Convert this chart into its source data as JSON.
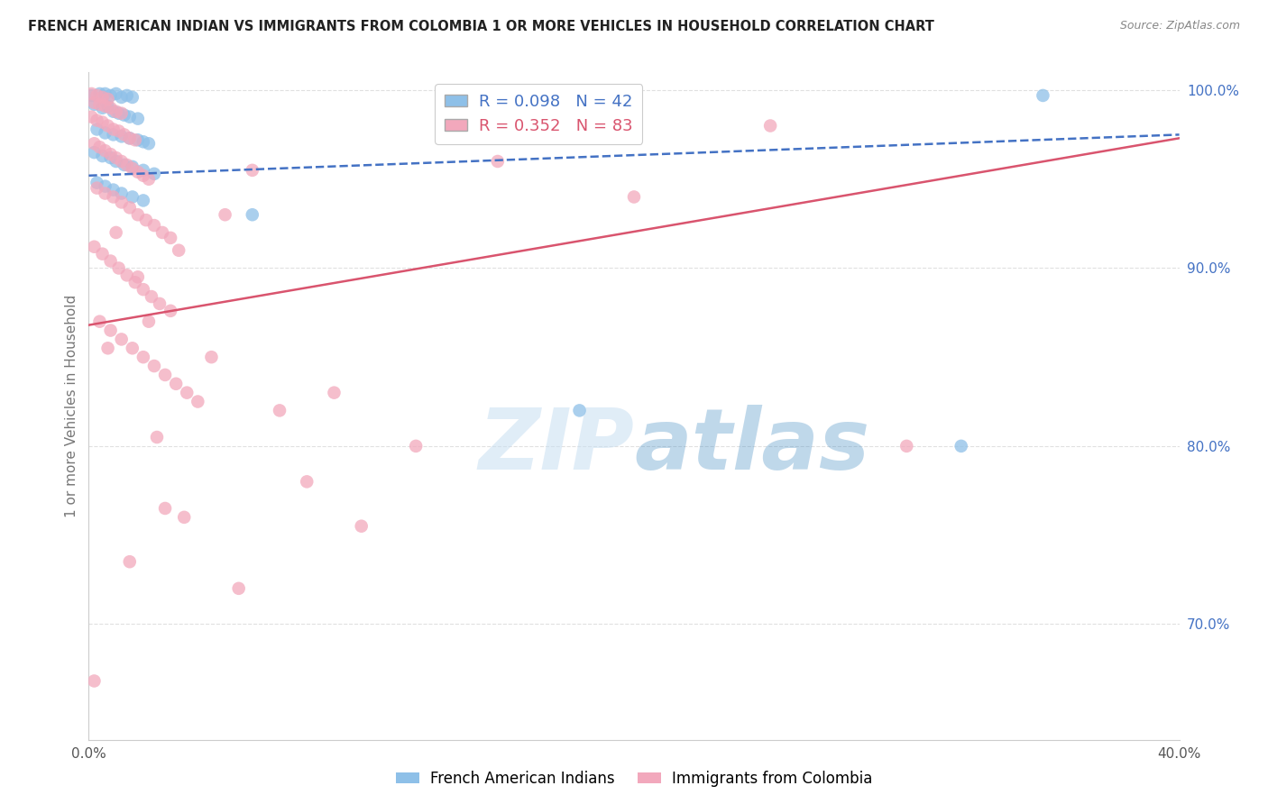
{
  "title": "FRENCH AMERICAN INDIAN VS IMMIGRANTS FROM COLOMBIA 1 OR MORE VEHICLES IN HOUSEHOLD CORRELATION CHART",
  "source": "Source: ZipAtlas.com",
  "ylabel": "1 or more Vehicles in Household",
  "xlim": [
    0.0,
    0.4
  ],
  "ylim": [
    0.635,
    1.01
  ],
  "xticks": [
    0.0,
    0.05,
    0.1,
    0.15,
    0.2,
    0.25,
    0.3,
    0.35,
    0.4
  ],
  "xtick_labels": [
    "0.0%",
    "",
    "",
    "",
    "",
    "",
    "",
    "",
    "40.0%"
  ],
  "ytick_labels_right": [
    "100.0%",
    "90.0%",
    "80.0%",
    "70.0%"
  ],
  "yticks_right": [
    1.0,
    0.9,
    0.8,
    0.7
  ],
  "legend_R_blue": "0.098",
  "legend_N_blue": "42",
  "legend_R_pink": "0.352",
  "legend_N_pink": "83",
  "legend_label_blue": "French American Indians",
  "legend_label_pink": "Immigrants from Colombia",
  "blue_color": "#8ec0e8",
  "pink_color": "#f2a8bc",
  "trendline_blue_color": "#4472c4",
  "trendline_pink_color": "#d9546e",
  "blue_scatter": [
    [
      0.001,
      0.997
    ],
    [
      0.004,
      0.998
    ],
    [
      0.006,
      0.998
    ],
    [
      0.008,
      0.997
    ],
    [
      0.01,
      0.998
    ],
    [
      0.012,
      0.996
    ],
    [
      0.014,
      0.997
    ],
    [
      0.016,
      0.996
    ],
    [
      0.002,
      0.992
    ],
    [
      0.005,
      0.99
    ],
    [
      0.007,
      0.991
    ],
    [
      0.009,
      0.988
    ],
    [
      0.011,
      0.987
    ],
    [
      0.013,
      0.986
    ],
    [
      0.015,
      0.985
    ],
    [
      0.018,
      0.984
    ],
    [
      0.003,
      0.978
    ],
    [
      0.006,
      0.976
    ],
    [
      0.009,
      0.975
    ],
    [
      0.012,
      0.974
    ],
    [
      0.015,
      0.973
    ],
    [
      0.018,
      0.972
    ],
    [
      0.02,
      0.971
    ],
    [
      0.022,
      0.97
    ],
    [
      0.002,
      0.965
    ],
    [
      0.005,
      0.963
    ],
    [
      0.008,
      0.962
    ],
    [
      0.01,
      0.96
    ],
    [
      0.013,
      0.958
    ],
    [
      0.016,
      0.957
    ],
    [
      0.02,
      0.955
    ],
    [
      0.024,
      0.953
    ],
    [
      0.003,
      0.948
    ],
    [
      0.006,
      0.946
    ],
    [
      0.009,
      0.944
    ],
    [
      0.012,
      0.942
    ],
    [
      0.016,
      0.94
    ],
    [
      0.02,
      0.938
    ],
    [
      0.06,
      0.93
    ],
    [
      0.18,
      0.82
    ],
    [
      0.32,
      0.8
    ],
    [
      0.35,
      0.997
    ]
  ],
  "pink_scatter": [
    [
      0.001,
      0.998
    ],
    [
      0.003,
      0.997
    ],
    [
      0.005,
      0.996
    ],
    [
      0.007,
      0.995
    ],
    [
      0.002,
      0.993
    ],
    [
      0.004,
      0.992
    ],
    [
      0.006,
      0.991
    ],
    [
      0.008,
      0.99
    ],
    [
      0.01,
      0.988
    ],
    [
      0.012,
      0.987
    ],
    [
      0.001,
      0.985
    ],
    [
      0.003,
      0.983
    ],
    [
      0.005,
      0.982
    ],
    [
      0.007,
      0.98
    ],
    [
      0.009,
      0.978
    ],
    [
      0.011,
      0.977
    ],
    [
      0.013,
      0.975
    ],
    [
      0.015,
      0.973
    ],
    [
      0.017,
      0.972
    ],
    [
      0.002,
      0.97
    ],
    [
      0.004,
      0.968
    ],
    [
      0.006,
      0.966
    ],
    [
      0.008,
      0.964
    ],
    [
      0.01,
      0.962
    ],
    [
      0.012,
      0.96
    ],
    [
      0.014,
      0.958
    ],
    [
      0.016,
      0.956
    ],
    [
      0.018,
      0.954
    ],
    [
      0.02,
      0.952
    ],
    [
      0.022,
      0.95
    ],
    [
      0.003,
      0.945
    ],
    [
      0.006,
      0.942
    ],
    [
      0.009,
      0.94
    ],
    [
      0.012,
      0.937
    ],
    [
      0.015,
      0.934
    ],
    [
      0.018,
      0.93
    ],
    [
      0.021,
      0.927
    ],
    [
      0.024,
      0.924
    ],
    [
      0.027,
      0.92
    ],
    [
      0.03,
      0.917
    ],
    [
      0.002,
      0.912
    ],
    [
      0.005,
      0.908
    ],
    [
      0.008,
      0.904
    ],
    [
      0.011,
      0.9
    ],
    [
      0.014,
      0.896
    ],
    [
      0.017,
      0.892
    ],
    [
      0.02,
      0.888
    ],
    [
      0.023,
      0.884
    ],
    [
      0.026,
      0.88
    ],
    [
      0.03,
      0.876
    ],
    [
      0.004,
      0.87
    ],
    [
      0.008,
      0.865
    ],
    [
      0.012,
      0.86
    ],
    [
      0.016,
      0.855
    ],
    [
      0.02,
      0.85
    ],
    [
      0.024,
      0.845
    ],
    [
      0.028,
      0.84
    ],
    [
      0.032,
      0.835
    ],
    [
      0.036,
      0.83
    ],
    [
      0.04,
      0.825
    ],
    [
      0.05,
      0.93
    ],
    [
      0.06,
      0.955
    ],
    [
      0.07,
      0.82
    ],
    [
      0.09,
      0.83
    ],
    [
      0.12,
      0.8
    ],
    [
      0.15,
      0.96
    ],
    [
      0.2,
      0.94
    ],
    [
      0.25,
      0.98
    ],
    [
      0.3,
      0.8
    ],
    [
      0.002,
      0.668
    ],
    [
      0.08,
      0.78
    ],
    [
      0.1,
      0.755
    ],
    [
      0.035,
      0.76
    ],
    [
      0.045,
      0.85
    ],
    [
      0.055,
      0.72
    ],
    [
      0.025,
      0.805
    ],
    [
      0.015,
      0.735
    ],
    [
      0.028,
      0.765
    ],
    [
      0.022,
      0.87
    ],
    [
      0.033,
      0.91
    ],
    [
      0.018,
      0.895
    ],
    [
      0.01,
      0.92
    ],
    [
      0.007,
      0.855
    ]
  ],
  "watermark_zip": "ZIP",
  "watermark_atlas": "atlas",
  "background_color": "#ffffff",
  "grid_color": "#e0e0e0"
}
